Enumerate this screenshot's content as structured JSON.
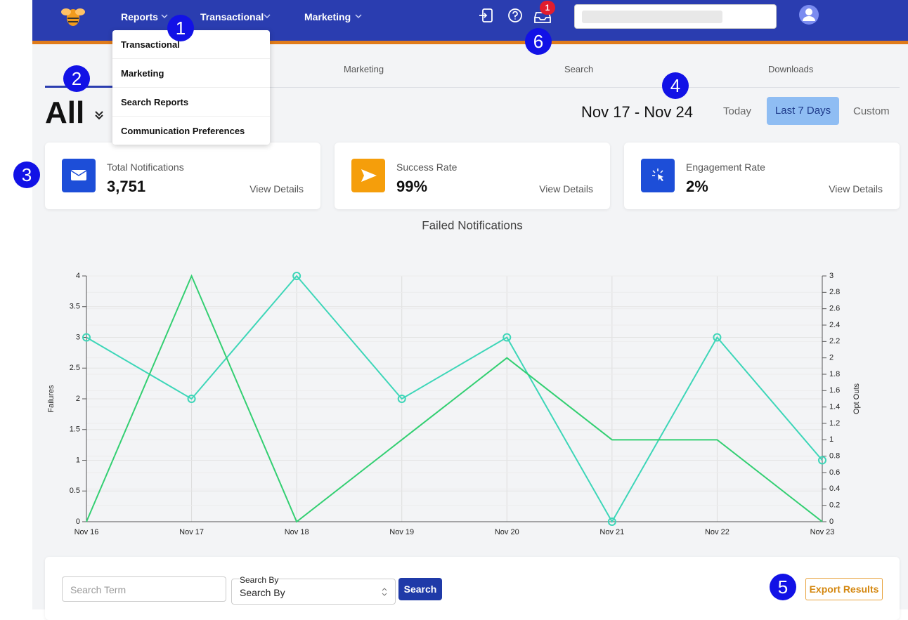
{
  "nav": {
    "menu": [
      "Reports",
      "Transactional",
      "Marketing"
    ],
    "badge": "1"
  },
  "dropdown": [
    "Transactional",
    "Marketing",
    "Search Reports",
    "Communication Preferences"
  ],
  "tabs": [
    "Marketing",
    "Search",
    "Downloads"
  ],
  "filter": "All",
  "date_range": "Nov 17 - Nov 24",
  "range_buttons": [
    "Today",
    "Last 7 Days",
    "Custom"
  ],
  "cards": [
    {
      "label": "Total Notifications",
      "value": "3,751",
      "link": "View Details"
    },
    {
      "label": "Success Rate",
      "value": "99%",
      "link": "View Details"
    },
    {
      "label": "Engagement Rate",
      "value": "2%",
      "link": "View Details"
    }
  ],
  "chart_data": {
    "type": "line",
    "title": "Failed Notifications",
    "ylabel": "Failures",
    "y2label": "Opt Outs",
    "categories": [
      "Nov 16",
      "Nov 17",
      "Nov 18",
      "Nov 19",
      "Nov 20",
      "Nov 21",
      "Nov 22",
      "Nov 23"
    ],
    "series": [
      {
        "color": "#3dd6b8",
        "values": [
          3,
          2,
          4,
          2,
          3,
          0,
          3,
          1
        ],
        "markers": true
      },
      {
        "color": "#33cf72",
        "values": [
          0,
          3,
          0,
          1,
          2,
          1,
          1,
          0
        ],
        "axis": "y2",
        "markers": false
      }
    ],
    "ylim": [
      0,
      4
    ],
    "yticks": [
      0,
      0.5,
      1,
      1.5,
      2,
      2.5,
      3,
      3.5,
      4
    ],
    "y2lim": [
      0,
      3
    ],
    "y2ticks": [
      0,
      0.2,
      0.4,
      0.6,
      0.8,
      1,
      1.2,
      1.4,
      1.6,
      1.8,
      2,
      2.2,
      2.4,
      2.6,
      2.8,
      3
    ],
    "grid": true
  },
  "search": {
    "placeholder": "Search Term",
    "by_label": "Search By",
    "by_value": "Search By",
    "button": "Search",
    "export": "Export Results"
  },
  "annotations": [
    "1",
    "2",
    "3",
    "4",
    "5",
    "6"
  ]
}
